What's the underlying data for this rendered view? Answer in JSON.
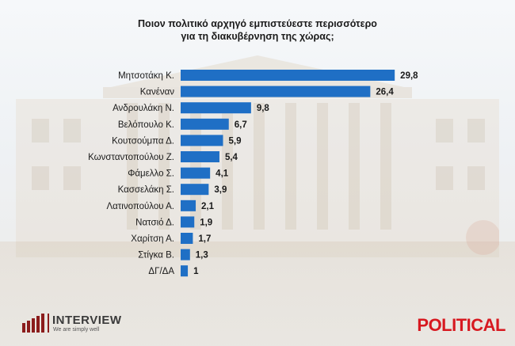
{
  "title_line1": "Ποιον πολιτικό αρχηγό εμπιστεύεστε περισσότερο",
  "title_line2": "για τη διακυβέρνηση της χώρας;",
  "brand": {
    "name": "INTERVIEW",
    "tagline": "We are simply well",
    "publisher": "POLITICAL"
  },
  "colors": {
    "bar": "#1f6fc5",
    "publisher": "#d71920",
    "brand_mark": "#8b1c1c"
  },
  "chart_data": {
    "type": "bar",
    "orientation": "horizontal",
    "title": "Ποιον πολιτικό αρχηγό εμπιστεύεστε περισσότερο για τη διακυβέρνηση της χώρας;",
    "categories": [
      "Μητσοτάκη Κ.",
      "Κανέναν",
      "Ανδρουλάκη Ν.",
      "Βελόπουλο Κ.",
      "Κουτσούμπα Δ.",
      "Κωνσταντοπούλου Ζ.",
      "Φάμελλο Σ.",
      "Κασσελάκη Σ.",
      "Λατινοπούλου Α.",
      "Νατσιό Δ.",
      "Χαρίτση Α.",
      "Στίγκα Β.",
      "ΔΓ/ΔΑ"
    ],
    "values": [
      29.8,
      26.4,
      9.8,
      6.7,
      5.9,
      5.4,
      4.1,
      3.9,
      2.1,
      1.9,
      1.7,
      1.3,
      1
    ],
    "value_labels": [
      "29,8",
      "26,4",
      "9,8",
      "6,7",
      "5,9",
      "5,4",
      "4,1",
      "3,9",
      "2,1",
      "1,9",
      "1,7",
      "1,3",
      "1"
    ],
    "xlim": [
      0,
      30
    ],
    "grid": false,
    "legend": "none"
  }
}
